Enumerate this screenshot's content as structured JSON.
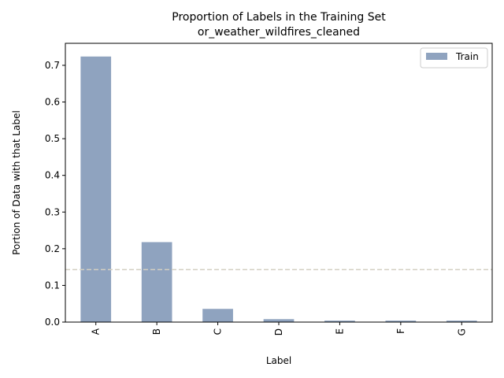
{
  "chart_data": {
    "type": "bar",
    "title": "Proportion of Labels in the Training Set",
    "subtitle": "or_weather_wildfires_cleaned",
    "xlabel": "Label",
    "ylabel": "Portion of Data with that Label",
    "categories": [
      "A",
      "B",
      "C",
      "D",
      "E",
      "F",
      "G"
    ],
    "series": [
      {
        "name": "Train",
        "color": "#8fa3bf",
        "values": [
          0.724,
          0.218,
          0.036,
          0.008,
          0.004,
          0.004,
          0.004
        ]
      }
    ],
    "reference_line": {
      "value": 0.143,
      "color": "#d3cfc2",
      "style": "dashed"
    },
    "ylim": [
      0,
      0.76
    ],
    "yticks": [
      "0.0",
      "0.1",
      "0.2",
      "0.3",
      "0.4",
      "0.5",
      "0.6",
      "0.7"
    ],
    "grid": false,
    "legend_position": "top-right"
  }
}
